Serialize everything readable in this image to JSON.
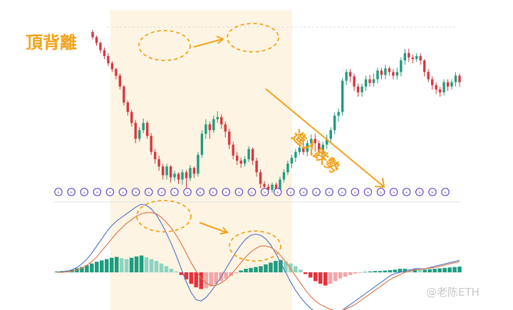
{
  "chart_data": {
    "type": "candlestick_macd",
    "colors": {
      "up": "#1e9c7f",
      "down": "#d9363e",
      "accent": "#f2a31b",
      "highlight": "#fdf4e3",
      "marker": "#6a4cc3",
      "fast_line": "#5b7bc9",
      "slow_line": "#e07a4f"
    },
    "candles": [
      [
        82,
        270,
        272,
        275,
        268
      ],
      [
        95,
        272,
        271,
        274,
        270
      ]
    ],
    "price_series": [
      {
        "o": 265,
        "c": 258,
        "h": 268,
        "l": 255
      },
      {
        "o": 258,
        "c": 250,
        "h": 260,
        "l": 246
      },
      {
        "o": 250,
        "c": 240,
        "h": 252,
        "l": 236
      },
      {
        "o": 240,
        "c": 232,
        "h": 244,
        "l": 228
      },
      {
        "o": 232,
        "c": 222,
        "h": 236,
        "l": 218
      },
      {
        "o": 222,
        "c": 214,
        "h": 225,
        "l": 210
      },
      {
        "o": 214,
        "c": 205,
        "h": 216,
        "l": 200
      },
      {
        "o": 205,
        "c": 190,
        "h": 208,
        "l": 186
      },
      {
        "o": 190,
        "c": 168,
        "h": 192,
        "l": 164
      },
      {
        "o": 168,
        "c": 155,
        "h": 171,
        "l": 150
      },
      {
        "o": 155,
        "c": 140,
        "h": 158,
        "l": 135
      },
      {
        "o": 140,
        "c": 118,
        "h": 144,
        "l": 112
      },
      {
        "o": 118,
        "c": 130,
        "h": 134,
        "l": 114
      },
      {
        "o": 130,
        "c": 140,
        "h": 146,
        "l": 126
      },
      {
        "o": 140,
        "c": 122,
        "h": 143,
        "l": 118
      },
      {
        "o": 122,
        "c": 100,
        "h": 126,
        "l": 96
      },
      {
        "o": 100,
        "c": 90,
        "h": 104,
        "l": 84
      },
      {
        "o": 90,
        "c": 80,
        "h": 95,
        "l": 74
      },
      {
        "o": 80,
        "c": 68,
        "h": 84,
        "l": 62
      },
      {
        "o": 68,
        "c": 80,
        "h": 84,
        "l": 62
      },
      {
        "o": 80,
        "c": 65,
        "h": 82,
        "l": 58
      },
      {
        "o": 65,
        "c": 70,
        "h": 74,
        "l": 60
      },
      {
        "o": 70,
        "c": 62,
        "h": 72,
        "l": 56
      },
      {
        "o": 62,
        "c": 72,
        "h": 76,
        "l": 55
      },
      {
        "o": 72,
        "c": 64,
        "h": 75,
        "l": 48
      },
      {
        "o": 64,
        "c": 78,
        "h": 82,
        "l": 60
      },
      {
        "o": 78,
        "c": 70,
        "h": 80,
        "l": 64
      },
      {
        "o": 70,
        "c": 96,
        "h": 100,
        "l": 66
      },
      {
        "o": 96,
        "c": 125,
        "h": 130,
        "l": 92
      },
      {
        "o": 125,
        "c": 138,
        "h": 145,
        "l": 118
      },
      {
        "o": 138,
        "c": 130,
        "h": 142,
        "l": 118
      },
      {
        "o": 130,
        "c": 145,
        "h": 150,
        "l": 126
      },
      {
        "o": 145,
        "c": 148,
        "h": 156,
        "l": 140
      },
      {
        "o": 148,
        "c": 138,
        "h": 152,
        "l": 132
      },
      {
        "o": 138,
        "c": 128,
        "h": 142,
        "l": 120
      },
      {
        "o": 128,
        "c": 110,
        "h": 132,
        "l": 104
      },
      {
        "o": 110,
        "c": 95,
        "h": 114,
        "l": 90
      },
      {
        "o": 95,
        "c": 88,
        "h": 100,
        "l": 82
      },
      {
        "o": 88,
        "c": 84,
        "h": 92,
        "l": 78
      },
      {
        "o": 84,
        "c": 90,
        "h": 94,
        "l": 80
      },
      {
        "o": 90,
        "c": 104,
        "h": 108,
        "l": 86
      },
      {
        "o": 104,
        "c": 88,
        "h": 106,
        "l": 82
      },
      {
        "o": 88,
        "c": 72,
        "h": 92,
        "l": 66
      },
      {
        "o": 72,
        "c": 56,
        "h": 76,
        "l": 50
      },
      {
        "o": 56,
        "c": 52,
        "h": 60,
        "l": 46
      },
      {
        "o": 52,
        "c": 48,
        "h": 56,
        "l": 42
      },
      {
        "o": 48,
        "c": 55,
        "h": 58,
        "l": 44
      },
      {
        "o": 55,
        "c": 48,
        "h": 58,
        "l": 42
      },
      {
        "o": 48,
        "c": 62,
        "h": 66,
        "l": 44
      },
      {
        "o": 62,
        "c": 72,
        "h": 76,
        "l": 58
      },
      {
        "o": 72,
        "c": 84,
        "h": 88,
        "l": 68
      },
      {
        "o": 84,
        "c": 92,
        "h": 96,
        "l": 78
      },
      {
        "o": 92,
        "c": 100,
        "h": 104,
        "l": 86
      },
      {
        "o": 100,
        "c": 106,
        "h": 112,
        "l": 96
      },
      {
        "o": 106,
        "c": 100,
        "h": 118,
        "l": 96
      },
      {
        "o": 100,
        "c": 112,
        "h": 116,
        "l": 94
      },
      {
        "o": 112,
        "c": 118,
        "h": 124,
        "l": 106
      },
      {
        "o": 118,
        "c": 112,
        "h": 125,
        "l": 100
      },
      {
        "o": 112,
        "c": 100,
        "h": 116,
        "l": 94
      },
      {
        "o": 100,
        "c": 110,
        "h": 114,
        "l": 92
      },
      {
        "o": 110,
        "c": 118,
        "h": 124,
        "l": 104
      },
      {
        "o": 118,
        "c": 130,
        "h": 134,
        "l": 112
      },
      {
        "o": 130,
        "c": 150,
        "h": 154,
        "l": 124
      },
      {
        "o": 150,
        "c": 155,
        "h": 160,
        "l": 142
      },
      {
        "o": 155,
        "c": 198,
        "h": 202,
        "l": 150
      },
      {
        "o": 198,
        "c": 210,
        "h": 214,
        "l": 192
      },
      {
        "o": 210,
        "c": 204,
        "h": 214,
        "l": 196
      },
      {
        "o": 204,
        "c": 190,
        "h": 208,
        "l": 184
      },
      {
        "o": 190,
        "c": 182,
        "h": 194,
        "l": 176
      },
      {
        "o": 182,
        "c": 190,
        "h": 194,
        "l": 176
      },
      {
        "o": 190,
        "c": 200,
        "h": 205,
        "l": 184
      },
      {
        "o": 200,
        "c": 195,
        "h": 206,
        "l": 190
      },
      {
        "o": 195,
        "c": 200,
        "h": 208,
        "l": 190
      },
      {
        "o": 200,
        "c": 212,
        "h": 216,
        "l": 194
      },
      {
        "o": 212,
        "c": 206,
        "h": 216,
        "l": 200
      },
      {
        "o": 206,
        "c": 215,
        "h": 220,
        "l": 200
      },
      {
        "o": 215,
        "c": 210,
        "h": 218,
        "l": 205
      },
      {
        "o": 210,
        "c": 205,
        "h": 214,
        "l": 200
      },
      {
        "o": 205,
        "c": 210,
        "h": 216,
        "l": 200
      },
      {
        "o": 210,
        "c": 226,
        "h": 230,
        "l": 204
      },
      {
        "o": 226,
        "c": 236,
        "h": 242,
        "l": 220
      },
      {
        "o": 236,
        "c": 230,
        "h": 242,
        "l": 224
      },
      {
        "o": 230,
        "c": 228,
        "h": 234,
        "l": 222
      },
      {
        "o": 228,
        "c": 232,
        "h": 236,
        "l": 224
      },
      {
        "o": 232,
        "c": 226,
        "h": 236,
        "l": 220
      },
      {
        "o": 226,
        "c": 210,
        "h": 228,
        "l": 204
      },
      {
        "o": 210,
        "c": 200,
        "h": 214,
        "l": 196
      },
      {
        "o": 200,
        "c": 192,
        "h": 204,
        "l": 186
      },
      {
        "o": 192,
        "c": 186,
        "h": 196,
        "l": 180
      },
      {
        "o": 186,
        "c": 182,
        "h": 190,
        "l": 176
      },
      {
        "o": 182,
        "c": 196,
        "h": 200,
        "l": 178
      },
      {
        "o": 196,
        "c": 190,
        "h": 200,
        "l": 184
      },
      {
        "o": 190,
        "c": 196,
        "h": 200,
        "l": 186
      },
      {
        "o": 196,
        "c": 205,
        "h": 210,
        "l": 190
      },
      {
        "o": 205,
        "c": 196,
        "h": 208,
        "l": 190
      }
    ],
    "macd_hist": [
      0.2,
      0.3,
      0.4,
      0.6,
      0.9,
      1.2,
      1.6,
      2.0,
      2.4,
      2.7,
      3.0,
      3.3,
      3.5,
      3.2,
      3.0,
      3.3,
      3.6,
      3.8,
      3.4,
      3.0,
      2.6,
      2.0,
      1.4,
      0.8,
      0.2,
      -0.6,
      -1.6,
      -2.6,
      -3.4,
      -3.8,
      -3.6,
      -3.2,
      -2.6,
      -2.0,
      -1.4,
      -0.8,
      -0.2,
      0.4,
      0.8,
      1.0,
      1.2,
      1.4,
      1.8,
      2.2,
      2.6,
      2.8,
      2.4,
      2.0,
      1.4,
      0.6,
      -0.4,
      -1.2,
      -2.0,
      -2.6,
      -3.0,
      -2.6,
      -2.0,
      -1.4,
      -1.0,
      -0.6,
      -0.3,
      -0.1,
      0.1,
      0.2,
      0.3,
      0.3,
      0.4,
      0.5,
      0.6,
      0.8,
      0.8,
      0.7,
      0.7,
      0.6,
      0.6,
      0.7,
      0.8,
      0.9,
      1.0,
      1.1,
      1.2,
      1.3
    ],
    "macd_fast": [
      0.0,
      0.1,
      0.2,
      0.4,
      0.8,
      1.4,
      2.2,
      3.2,
      4.4,
      5.6,
      6.8,
      7.8,
      8.6,
      9.2,
      9.8,
      10.4,
      11.0,
      11.4,
      11.2,
      10.6,
      9.6,
      8.2,
      6.6,
      4.8,
      2.8,
      0.6,
      -1.6,
      -3.4,
      -4.6,
      -4.8,
      -4.2,
      -3.2,
      -2.0,
      -0.8,
      0.6,
      2.0,
      3.4,
      4.6,
      5.6,
      6.2,
      6.4,
      6.2,
      5.6,
      4.6,
      3.2,
      1.6,
      0.0,
      -1.6,
      -3.0,
      -4.2,
      -5.2,
      -6.0,
      -6.6,
      -7.0,
      -7.2,
      -7.2,
      -7.0,
      -6.6,
      -6.0,
      -5.4,
      -4.8,
      -4.2,
      -3.6,
      -3.0,
      -2.4,
      -1.8,
      -1.2,
      -0.6,
      -0.2,
      0.0,
      0.2,
      0.4,
      0.6,
      0.6,
      0.6,
      0.8,
      1.0,
      1.2,
      1.4,
      1.6,
      1.8,
      2.0
    ],
    "macd_slow": [
      0.0,
      0.0,
      0.1,
      0.2,
      0.4,
      0.7,
      1.2,
      1.8,
      2.6,
      3.6,
      4.6,
      5.6,
      6.6,
      7.4,
      8.2,
      8.8,
      9.4,
      9.8,
      10.0,
      10.0,
      9.8,
      9.2,
      8.4,
      7.4,
      6.2,
      4.8,
      3.2,
      1.6,
      0.2,
      -1.0,
      -1.8,
      -2.2,
      -2.2,
      -1.8,
      -1.2,
      -0.4,
      0.6,
      1.6,
      2.6,
      3.4,
      4.0,
      4.4,
      4.4,
      4.2,
      3.6,
      2.8,
      1.8,
      0.6,
      -0.6,
      -1.8,
      -3.0,
      -4.0,
      -4.8,
      -5.4,
      -5.8,
      -6.2,
      -6.4,
      -6.4,
      -6.2,
      -5.8,
      -5.4,
      -4.8,
      -4.2,
      -3.6,
      -3.0,
      -2.4,
      -1.8,
      -1.2,
      -0.8,
      -0.4,
      0.0,
      0.2,
      0.4,
      0.5,
      0.6,
      0.7,
      0.8,
      1.0,
      1.2,
      1.4,
      1.6,
      1.8
    ]
  },
  "annotations": {
    "top_divergence": "頂背離",
    "trend_label": "進入跌勢"
  },
  "watermark": "@老陈ETH"
}
